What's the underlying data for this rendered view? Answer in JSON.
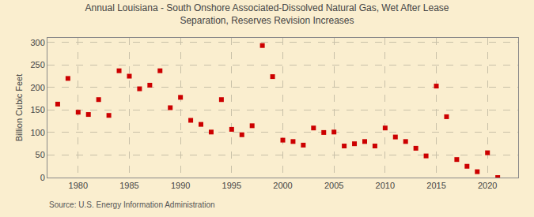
{
  "chart_data": {
    "type": "scatter",
    "title": "Annual Louisiana - South Onshore Associated-Dissolved Natural Gas, Wet After Lease\nSeparation, Reserves Revision Increases",
    "ylabel": "Billion Cubic Feet",
    "annotations": [
      "Source: U.S. Energy Information Administration"
    ],
    "background_color": "#faeecf",
    "color": "#cc0000",
    "marker": "square",
    "x": [
      1978,
      1979,
      1980,
      1981,
      1982,
      1983,
      1984,
      1985,
      1986,
      1987,
      1988,
      1989,
      1990,
      1991,
      1992,
      1993,
      1994,
      1995,
      1996,
      1997,
      1998,
      1999,
      2000,
      2001,
      2002,
      2003,
      2004,
      2005,
      2006,
      2007,
      2008,
      2009,
      2010,
      2011,
      2012,
      2013,
      2014,
      2015,
      2016,
      2017,
      2018,
      2019,
      2020,
      2021
    ],
    "values": [
      163,
      220,
      145,
      140,
      173,
      138,
      237,
      225,
      197,
      205,
      237,
      155,
      178,
      127,
      118,
      101,
      173,
      107,
      95,
      115,
      293,
      224,
      83,
      80,
      72,
      110,
      100,
      101,
      70,
      75,
      80,
      70,
      110,
      90,
      80,
      65,
      48,
      203,
      135,
      40,
      25,
      13,
      55,
      0
    ],
    "xlim": [
      1977,
      2023
    ],
    "xticks": [
      1980,
      1985,
      1990,
      1995,
      2000,
      2005,
      2010,
      2015,
      2020
    ],
    "ylim": [
      0,
      310
    ],
    "yticks": [
      0,
      50,
      100,
      150,
      200,
      250,
      300
    ],
    "grid": true
  }
}
